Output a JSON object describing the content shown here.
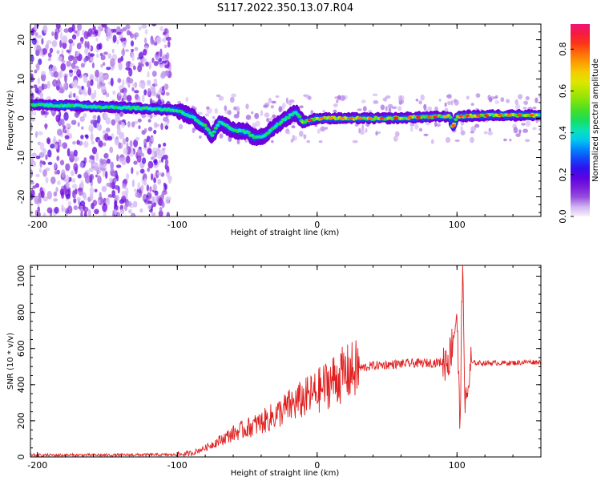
{
  "title": "S117.2022.350.13.07.R04",
  "chart_data": [
    {
      "type": "heatmap",
      "xlabel": "Height of straight line (km)",
      "ylabel": "Frequency (Hz)",
      "xlim": [
        -205,
        160
      ],
      "ylim": [
        -25,
        24
      ],
      "xticks": [
        -200,
        -100,
        0,
        100
      ],
      "yticks": [
        -20,
        -10,
        0,
        10,
        20
      ],
      "grid": false,
      "colorbar": {
        "label": "Normalized spectral amplitude",
        "range": [
          0.0,
          0.92
        ],
        "ticks": [
          0.0,
          0.2,
          0.4,
          0.6,
          0.8
        ],
        "colormap": "rainbow"
      },
      "ridge": {
        "description_points": [
          [
            -205,
            3.5
          ],
          [
            -160,
            3.0
          ],
          [
            -120,
            2.5
          ],
          [
            -100,
            2.0
          ],
          [
            -90,
            0.5
          ],
          [
            -80,
            -2.0
          ],
          [
            -75,
            -4.5
          ],
          [
            -70,
            -1.0
          ],
          [
            -60,
            -3.0
          ],
          [
            -50,
            -3.5
          ],
          [
            -45,
            -5.0
          ],
          [
            -38,
            -4.5
          ],
          [
            -30,
            -2.0
          ],
          [
            -20,
            0.5
          ],
          [
            -15,
            1.5
          ],
          [
            -10,
            -1.0
          ],
          [
            0,
            0.0
          ],
          [
            50,
            0.0
          ],
          [
            95,
            0.5
          ],
          [
            97,
            -2.5
          ],
          [
            100,
            0.5
          ],
          [
            130,
            0.8
          ],
          [
            160,
            0.8
          ]
        ],
        "peak_amplitude_near_x": [
          0,
          160
        ]
      },
      "noise_region_x": [
        -205,
        -105
      ]
    },
    {
      "type": "line",
      "xlabel": "Height of straight line (km)",
      "ylabel": "SNR (10 * v/v)",
      "xlim": [
        -205,
        160
      ],
      "ylim": [
        0,
        1060
      ],
      "xticks": [
        -200,
        -100,
        0,
        100
      ],
      "yticks": [
        0,
        200,
        400,
        600,
        800,
        1000
      ],
      "color": "#e02020",
      "grid": false,
      "series": [
        {
          "x": [
            -205,
            -180,
            -150,
            -120,
            -100,
            -90,
            -80,
            -70,
            -60,
            -50,
            -40,
            -30,
            -20,
            -10,
            0,
            10,
            20,
            30,
            40,
            50,
            60,
            70,
            80,
            90,
            95,
            100,
            102,
            104,
            106,
            110,
            120,
            130,
            140,
            150,
            160
          ],
          "y": [
            10,
            10,
            10,
            12,
            12,
            20,
            50,
            90,
            130,
            160,
            190,
            230,
            280,
            320,
            360,
            420,
            460,
            490,
            505,
            510,
            515,
            518,
            520,
            525,
            560,
            800,
            150,
            1050,
            250,
            520,
            520,
            520,
            520,
            525,
            525
          ]
        }
      ]
    }
  ]
}
